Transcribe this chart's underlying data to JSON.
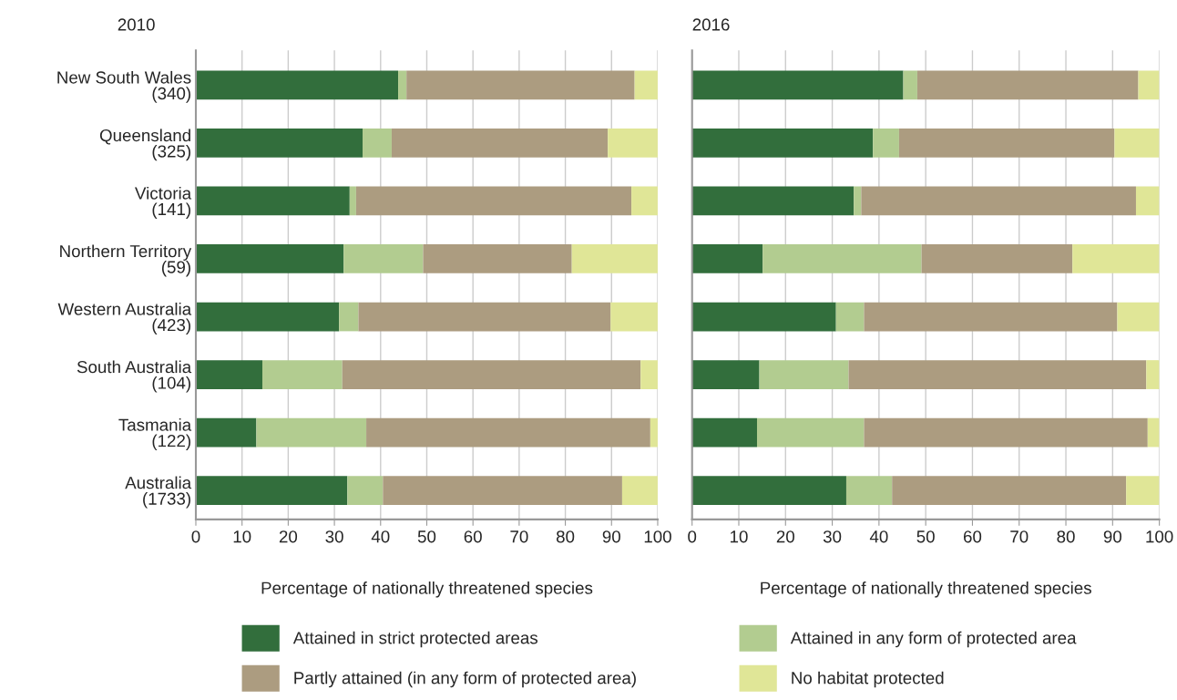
{
  "chart_data": [
    {
      "type": "bar",
      "title": "2010",
      "orientation": "horizontal",
      "stacked": true,
      "categories": [
        "New South Wales\n(340)",
        "Queensland\n(325)",
        "Victoria\n(141)",
        "Northern Territory\n(59)",
        "Western Australia\n(423)",
        "South Australia\n(104)",
        "Tasmania\n(122)",
        "Australia\n(1733)"
      ],
      "series": [
        {
          "name": "Attained in strict protected areas",
          "color": "#326e3c",
          "values": [
            43.8,
            36.1,
            33.3,
            32.0,
            31.0,
            14.4,
            13.1,
            32.8
          ]
        },
        {
          "name": "Attained in any form of protected area",
          "color": "#b2cc90",
          "values": [
            1.8,
            6.3,
            1.4,
            17.2,
            4.2,
            17.3,
            23.8,
            7.7
          ]
        },
        {
          "name": "Partly attained (in any form of protected area)",
          "color": "#ac9c80",
          "values": [
            49.4,
            46.8,
            59.6,
            32.2,
            54.6,
            64.6,
            61.5,
            51.8
          ]
        },
        {
          "name": "No habitat protected",
          "color": "#e0e697",
          "values": [
            5.0,
            10.8,
            5.7,
            18.6,
            10.2,
            3.7,
            1.6,
            7.7
          ]
        }
      ],
      "xlabel": "Percentage of nationally threatened species",
      "xlim": [
        0,
        100
      ],
      "xticks": [
        0,
        10,
        20,
        30,
        40,
        50,
        60,
        70,
        80,
        90,
        100
      ],
      "grid": "x",
      "legend": "bottom"
    },
    {
      "type": "bar",
      "title": "2016",
      "orientation": "horizontal",
      "stacked": true,
      "tick_labels": "x",
      "categories": [
        null,
        null,
        null,
        null,
        null,
        null,
        null,
        null
      ],
      "series": [
        {
          "color": "#326e3c",
          "values": [
            45.2,
            38.7,
            34.6,
            15.1,
            30.8,
            14.4,
            13.9,
            33.0
          ]
        },
        {
          "color": "#b2cc90",
          "values": [
            3.0,
            5.6,
            1.6,
            34.0,
            6.0,
            19.1,
            22.9,
            9.8
          ]
        },
        {
          "color": "#ac9c80",
          "values": [
            47.3,
            46.1,
            58.8,
            32.3,
            54.2,
            63.7,
            60.7,
            50.1
          ]
        },
        {
          "color": "#e0e697",
          "values": [
            4.5,
            9.6,
            5.0,
            18.6,
            9.0,
            2.8,
            2.5,
            7.1
          ]
        }
      ],
      "xlabel": "Percentage of nationally threatened species",
      "xlim": [
        0,
        100
      ],
      "xticks": [
        0,
        10,
        20,
        30,
        40,
        50,
        60,
        70,
        80,
        90,
        100
      ],
      "grid": "x"
    }
  ]
}
